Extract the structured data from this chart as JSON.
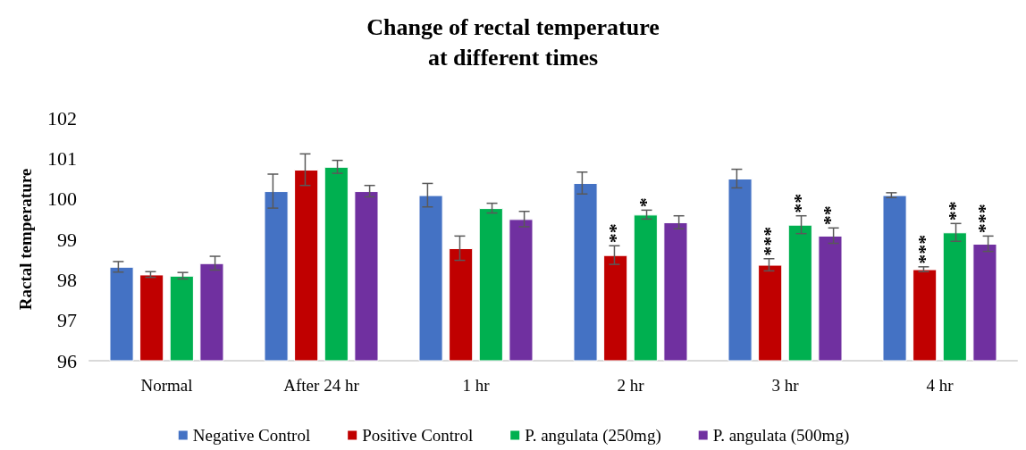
{
  "chart_data": {
    "type": "bar",
    "title": "Change of rectal temperature\nat different times",
    "ylabel": "Ractal temperature",
    "categories": [
      "Normal",
      "After 24 hr",
      "1 hr",
      "2 hr",
      "3 hr",
      "4 hr"
    ],
    "series": [
      {
        "name": "Negative Control",
        "color": "#4472c4",
        "values": [
          98.32,
          100.19,
          100.09,
          100.39,
          100.5,
          100.09
        ],
        "errors": [
          0.13,
          0.42,
          0.29,
          0.27,
          0.23,
          0.06
        ]
      },
      {
        "name": "Positive Control",
        "color": "#c00000",
        "values": [
          98.13,
          100.72,
          98.78,
          98.61,
          98.37,
          98.26
        ],
        "errors": [
          0.07,
          0.39,
          0.3,
          0.23,
          0.15,
          0.06
        ]
      },
      {
        "name": "P. angulata (250mg)",
        "color": "#00b050",
        "values": [
          98.1,
          100.79,
          99.77,
          99.61,
          99.36,
          99.17
        ],
        "errors": [
          0.08,
          0.16,
          0.12,
          0.11,
          0.22,
          0.22
        ]
      },
      {
        "name": "P. angulata (500mg)",
        "color": "#7030a0",
        "values": [
          98.41,
          100.19,
          99.5,
          99.42,
          99.09,
          98.89
        ],
        "errors": [
          0.17,
          0.14,
          0.19,
          0.16,
          0.19,
          0.19
        ]
      }
    ],
    "ylim": [
      96,
      102
    ],
    "yticks": [
      96,
      97,
      98,
      99,
      100,
      101,
      102
    ],
    "grid": false,
    "legend": "bottom",
    "annotations": [
      {
        "text": "**",
        "x": "2 hr",
        "y": 98.61
      },
      {
        "text": "*",
        "x": "2 hr",
        "y": 99.61
      },
      {
        "text": "***",
        "x": "3 hr",
        "y": 98.37
      },
      {
        "text": "**",
        "x": "3 hr",
        "y": 99.36
      },
      {
        "text": "**",
        "x": "3 hr",
        "y": 99.09
      },
      {
        "text": "***",
        "x": "4 hr",
        "y": 98.26
      },
      {
        "text": "**",
        "x": "4 hr",
        "y": 99.17
      },
      {
        "text": "***",
        "x": "4 hr",
        "y": 98.89
      }
    ]
  }
}
